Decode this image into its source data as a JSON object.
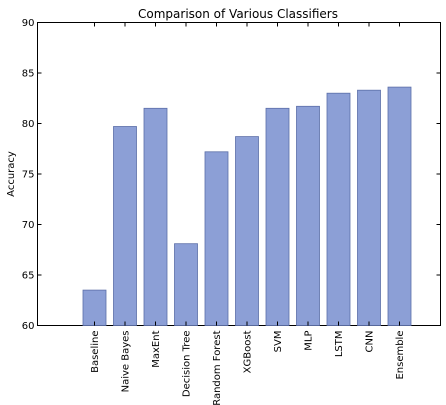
{
  "chart_data": {
    "type": "bar",
    "title": "Comparison of Various Classifiers",
    "xlabel": "",
    "ylabel": "Accuracy",
    "categories": [
      "Baseline",
      "Naive Bayes",
      "MaxEnt",
      "Decision Tree",
      "Random Forest",
      "XGBoost",
      "SVM",
      "MLP",
      "LSTM",
      "CNN",
      "Ensemble"
    ],
    "values": [
      63.5,
      79.7,
      81.5,
      68.1,
      77.2,
      78.7,
      81.5,
      81.7,
      83.0,
      83.3,
      83.6
    ],
    "ylim": [
      60,
      90
    ],
    "yticks": [
      "60",
      "65",
      "70",
      "75",
      "80",
      "85",
      "90"
    ],
    "grid": false,
    "colors": {
      "bar_fill": "#8c9fd6",
      "bar_stroke": "#5b6ea8",
      "axis": "#000000"
    }
  }
}
